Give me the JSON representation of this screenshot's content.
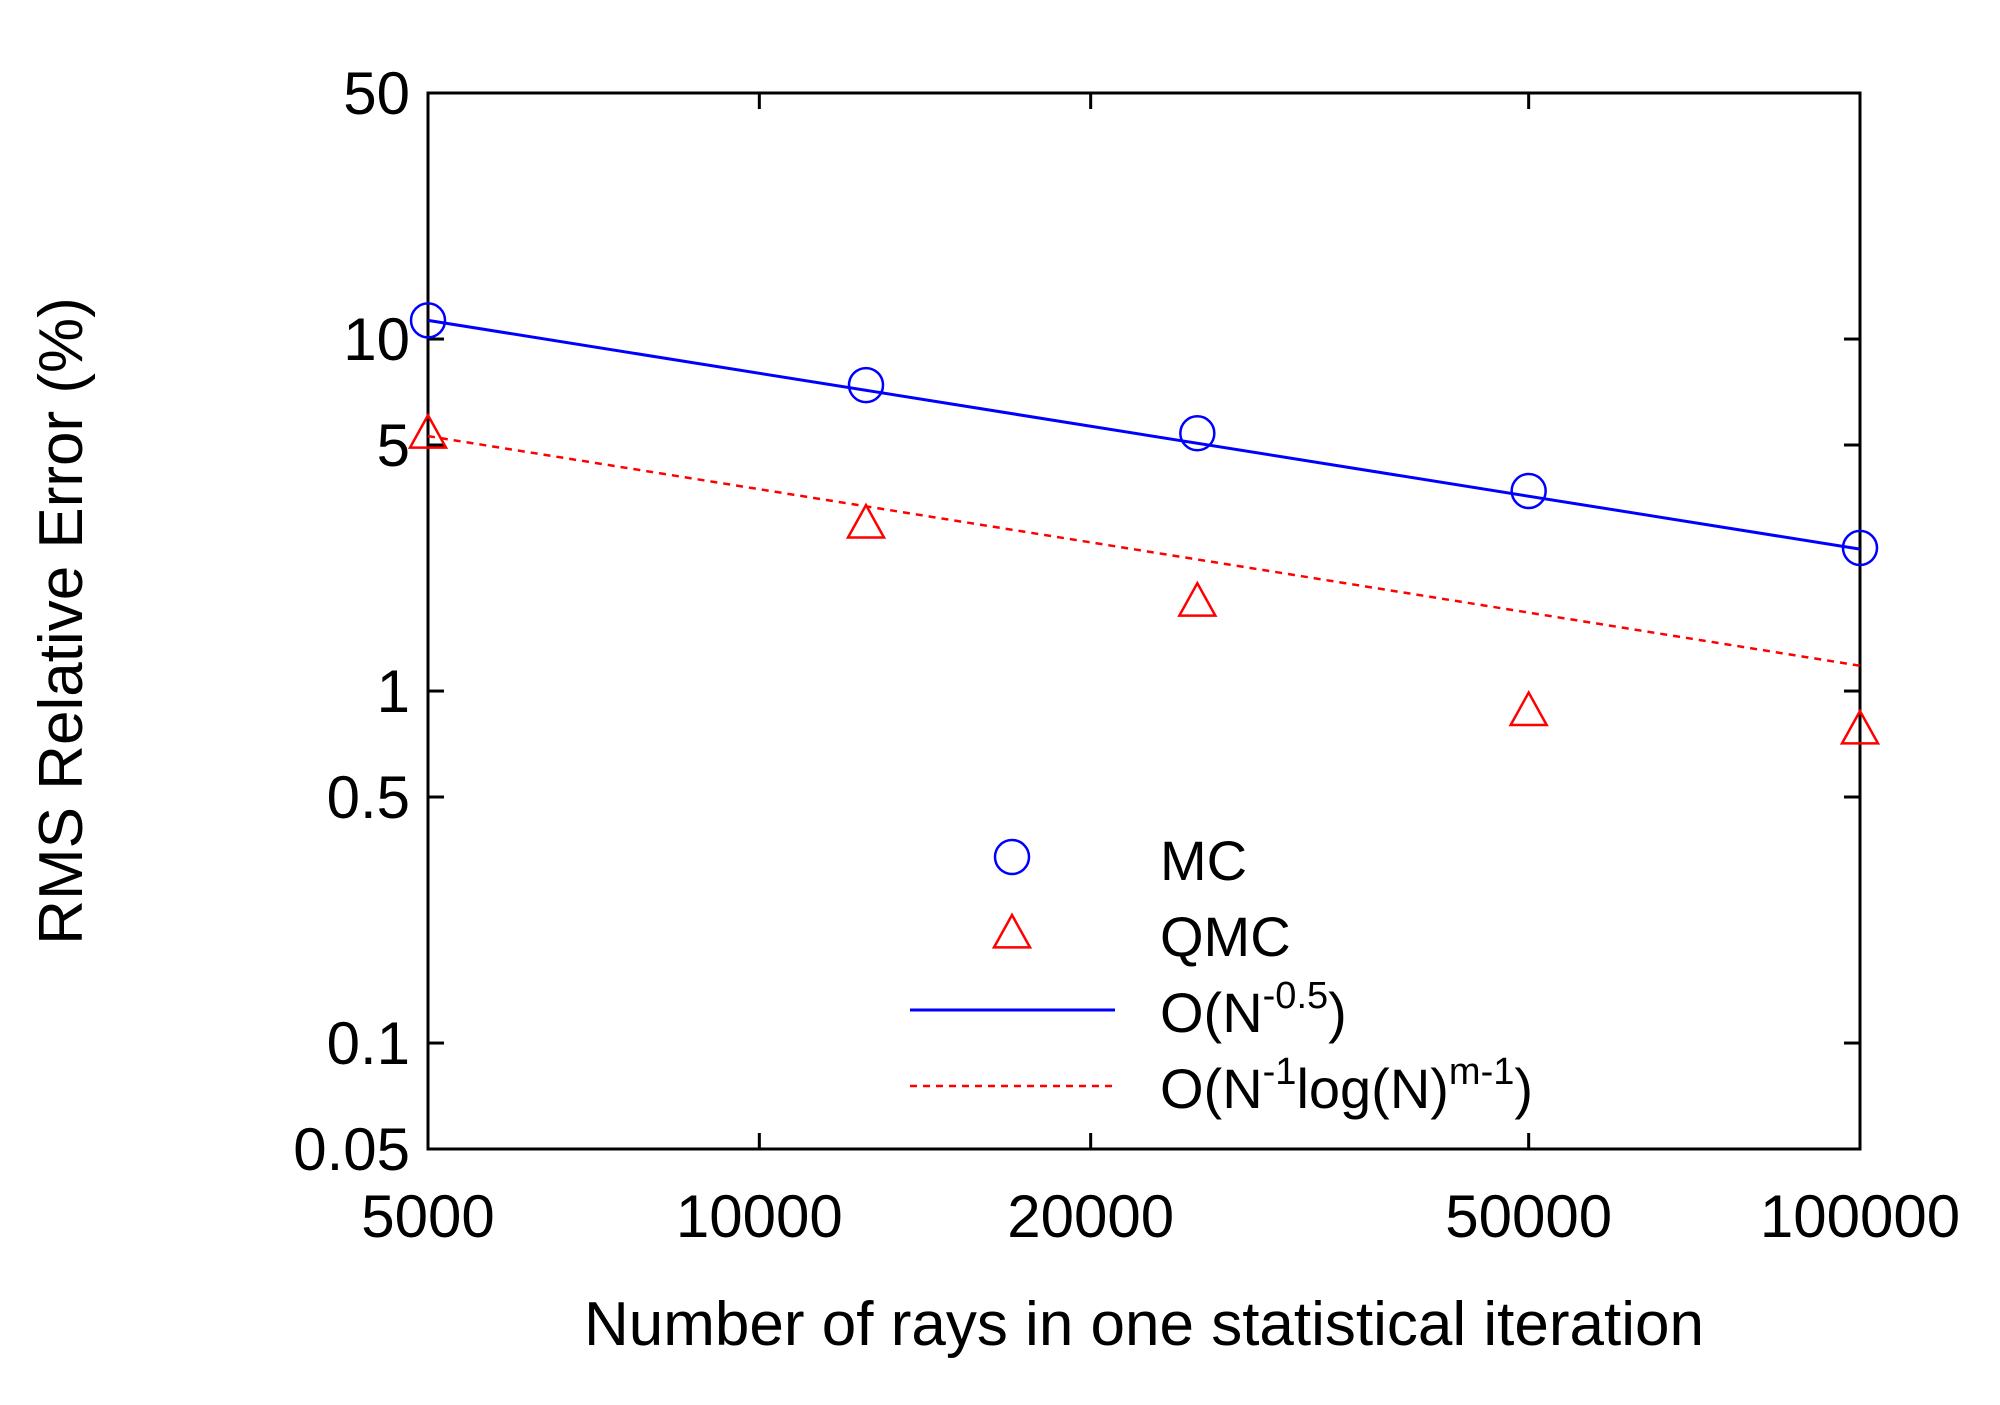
{
  "chart_data": {
    "type": "scatter",
    "xlabel": "Number of rays in one statistical iteration",
    "ylabel": "RMS Relative Error (%)",
    "x_scale": "log",
    "y_scale": "log",
    "xlim": [
      5000,
      100000
    ],
    "ylim": [
      0.05,
      50
    ],
    "x_ticks": [
      {
        "value": 5000,
        "label": "5000"
      },
      {
        "value": 10000,
        "label": "10000"
      },
      {
        "value": 20000,
        "label": "20000"
      },
      {
        "value": 50000,
        "label": "50000"
      },
      {
        "value": 100000,
        "label": "100000"
      }
    ],
    "y_ticks": [
      {
        "value": 0.05,
        "label": "0.05"
      },
      {
        "value": 0.1,
        "label": "0.1"
      },
      {
        "value": 0.5,
        "label": "0.5"
      },
      {
        "value": 1,
        "label": "1"
      },
      {
        "value": 5,
        "label": "5"
      },
      {
        "value": 10,
        "label": "10"
      },
      {
        "value": 50,
        "label": "50"
      }
    ],
    "grid": false,
    "legend_position": "bottom-center",
    "series": [
      {
        "name": "MC",
        "kind": "points",
        "marker": "circle",
        "color": "#0000ff",
        "x": [
          5000,
          12500,
          25000,
          50000,
          100000
        ],
        "y": [
          11.3,
          7.4,
          5.4,
          3.7,
          2.55
        ]
      },
      {
        "name": "QMC",
        "kind": "points",
        "marker": "triangle",
        "color": "#ff0000",
        "x": [
          5000,
          12500,
          25000,
          50000,
          100000
        ],
        "y": [
          5.4,
          3.0,
          1.8,
          0.88,
          0.78
        ]
      },
      {
        "name": "O(N-0.5)",
        "legend_base": "O(N",
        "legend_sup": "-0.5",
        "legend_tail": ")",
        "kind": "line",
        "dash": "solid",
        "color": "#0000ff",
        "x": [
          5000,
          100000
        ],
        "y": [
          11.3,
          2.53
        ]
      },
      {
        "name": "O(N-1log(N)m-1)",
        "legend_base": "O(N",
        "legend_sup": "-1",
        "legend_mid": "log(N)",
        "legend_sup2": "m-1",
        "legend_tail": ")",
        "kind": "line",
        "dash": "dotted",
        "color": "#ff0000",
        "x": [
          5000,
          100000
        ],
        "y": [
          5.3,
          1.18
        ]
      }
    ]
  }
}
